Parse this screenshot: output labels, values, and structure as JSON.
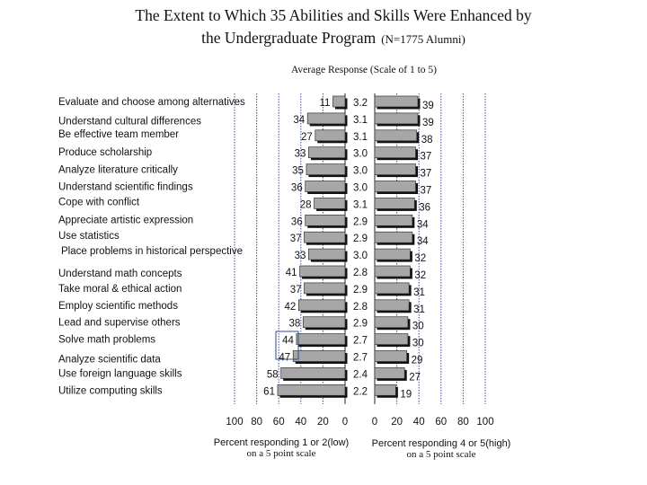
{
  "chart_data": {
    "type": "bar",
    "title_line1": "The Extent to Which 35 Abilities and Skills Were Enhanced by",
    "title_line2": "the Undergraduate Program",
    "title_note": "(N=1775 Alumni)",
    "center_header": "Average Response (Scale of 1 to 5)",
    "left_axis_ticks": [
      "100",
      "80",
      "60",
      "40",
      "20",
      "0"
    ],
    "right_axis_ticks": [
      "0",
      "20",
      "40",
      "60",
      "80",
      "100"
    ],
    "left_axis_label_line1": "Percent responding 1 or 2(low)",
    "left_axis_label_line2": "on a 5 point scale",
    "right_axis_label_line1": "Percent responding 4 or 5(high)",
    "right_axis_label_line2": "on a 5 point scale",
    "xlim": [
      0,
      100
    ],
    "categories": [
      "Evaluate and choose among alternatives",
      "Understand cultural differences",
      "Be effective team member",
      "Produce scholarship",
      "Analyze literature critically",
      "Understand scientific findings",
      "Cope with conflict",
      "Appreciate artistic expression",
      "Use statistics",
      "Place problems in historical perspective",
      "Understand math concepts",
      "Take moral & ethical action",
      "Employ scientific methods",
      "Lead and supervise others",
      "Solve math problems",
      "Analyze scientific data",
      "Use foreign language skills",
      "Utilize computing skills"
    ],
    "label_groups": [
      [
        0
      ],
      [
        1
      ],
      [
        2,
        3
      ],
      [
        4
      ],
      [
        5,
        6
      ],
      [
        7
      ],
      [
        8,
        9
      ],
      [
        10
      ],
      [
        11
      ],
      [
        12
      ],
      [
        13
      ],
      [
        14
      ],
      [
        15
      ],
      [
        16
      ],
      [
        17
      ]
    ],
    "series": [
      {
        "name": "Percent responding 1 or 2 (low)",
        "values": [
          11,
          34,
          27,
          33,
          35,
          36,
          28,
          36,
          37,
          33,
          41,
          37,
          42,
          38,
          44,
          47,
          58,
          61
        ]
      },
      {
        "name": "Average response (scale 1 to 5)",
        "values": [
          "3.2",
          "3.1",
          "3.1",
          "3.0",
          "3.0",
          "3.0",
          "3.1",
          "2.9",
          "2.9",
          "3.0",
          "2.8",
          "2.9",
          "2.8",
          "2.9",
          "2.7",
          "2.7",
          "2.4",
          "2.2"
        ]
      },
      {
        "name": "Percent responding 4 or 5 (high)",
        "values": [
          39,
          39,
          38,
          37,
          37,
          37,
          36,
          34,
          34,
          32,
          32,
          31,
          31,
          30,
          30,
          29,
          27,
          19
        ]
      }
    ]
  }
}
